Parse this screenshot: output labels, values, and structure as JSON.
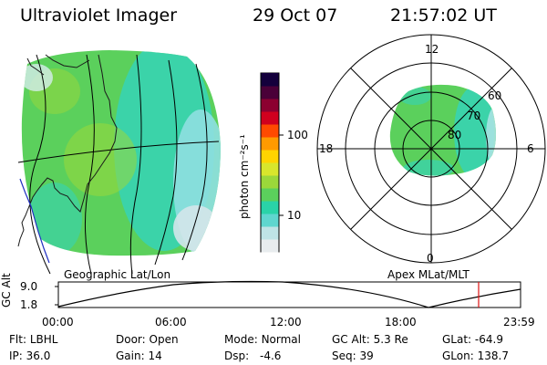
{
  "header": {
    "instrument": "Ultraviolet Imager",
    "date": "29 Oct 07",
    "time": "21:57:02 UT"
  },
  "colorbar": {
    "unit_label": "photon cm⁻²s⁻¹",
    "ticks": [
      "100",
      "10"
    ],
    "colors": [
      "#e8ecee",
      "#bfe3e6",
      "#5fd6cf",
      "#2ad3a8",
      "#5bd05c",
      "#9bd83a",
      "#d8e62c",
      "#ffd400",
      "#ff9a00",
      "#ff4a00",
      "#d0001e",
      "#8c0030",
      "#4a0038",
      "#14003c"
    ]
  },
  "panels": {
    "left_label": "Geographic Lat/Lon",
    "right_label": "Apex MLat/MLT",
    "polar": {
      "mlt_labels": {
        "top": "12",
        "left": "18",
        "right": "6",
        "bottom": "0"
      },
      "lat_labels": [
        "60",
        "70",
        "80"
      ]
    }
  },
  "altitude_plot": {
    "ylabel": "GC Alt",
    "yticks": [
      "9.0",
      "1.8"
    ],
    "xticks": [
      "00:00",
      "06:00",
      "12:00",
      "18:00",
      "23:59"
    ],
    "marker_time": "21:57"
  },
  "info": {
    "row1": [
      {
        "label": "Flt:",
        "value": "LBHL"
      },
      {
        "label": "Door:",
        "value": "Open"
      },
      {
        "label": "Mode:",
        "value": "Normal"
      },
      {
        "label": "GC Alt:",
        "value": "5.3 Re"
      },
      {
        "label": "GLat:",
        "value": "-64.9"
      }
    ],
    "row2": [
      {
        "label": "IP:",
        "value": "36.0"
      },
      {
        "label": "Gain:",
        "value": "14"
      },
      {
        "label": "Dsp:",
        "value": "-4.6"
      },
      {
        "label": "Seq:",
        "value": "39"
      },
      {
        "label": "GLon:",
        "value": "138.7"
      }
    ]
  },
  "colors": {
    "coastline": "#1a1a1a",
    "blue_coast": "#2030c0",
    "marker": "#dd1111"
  }
}
